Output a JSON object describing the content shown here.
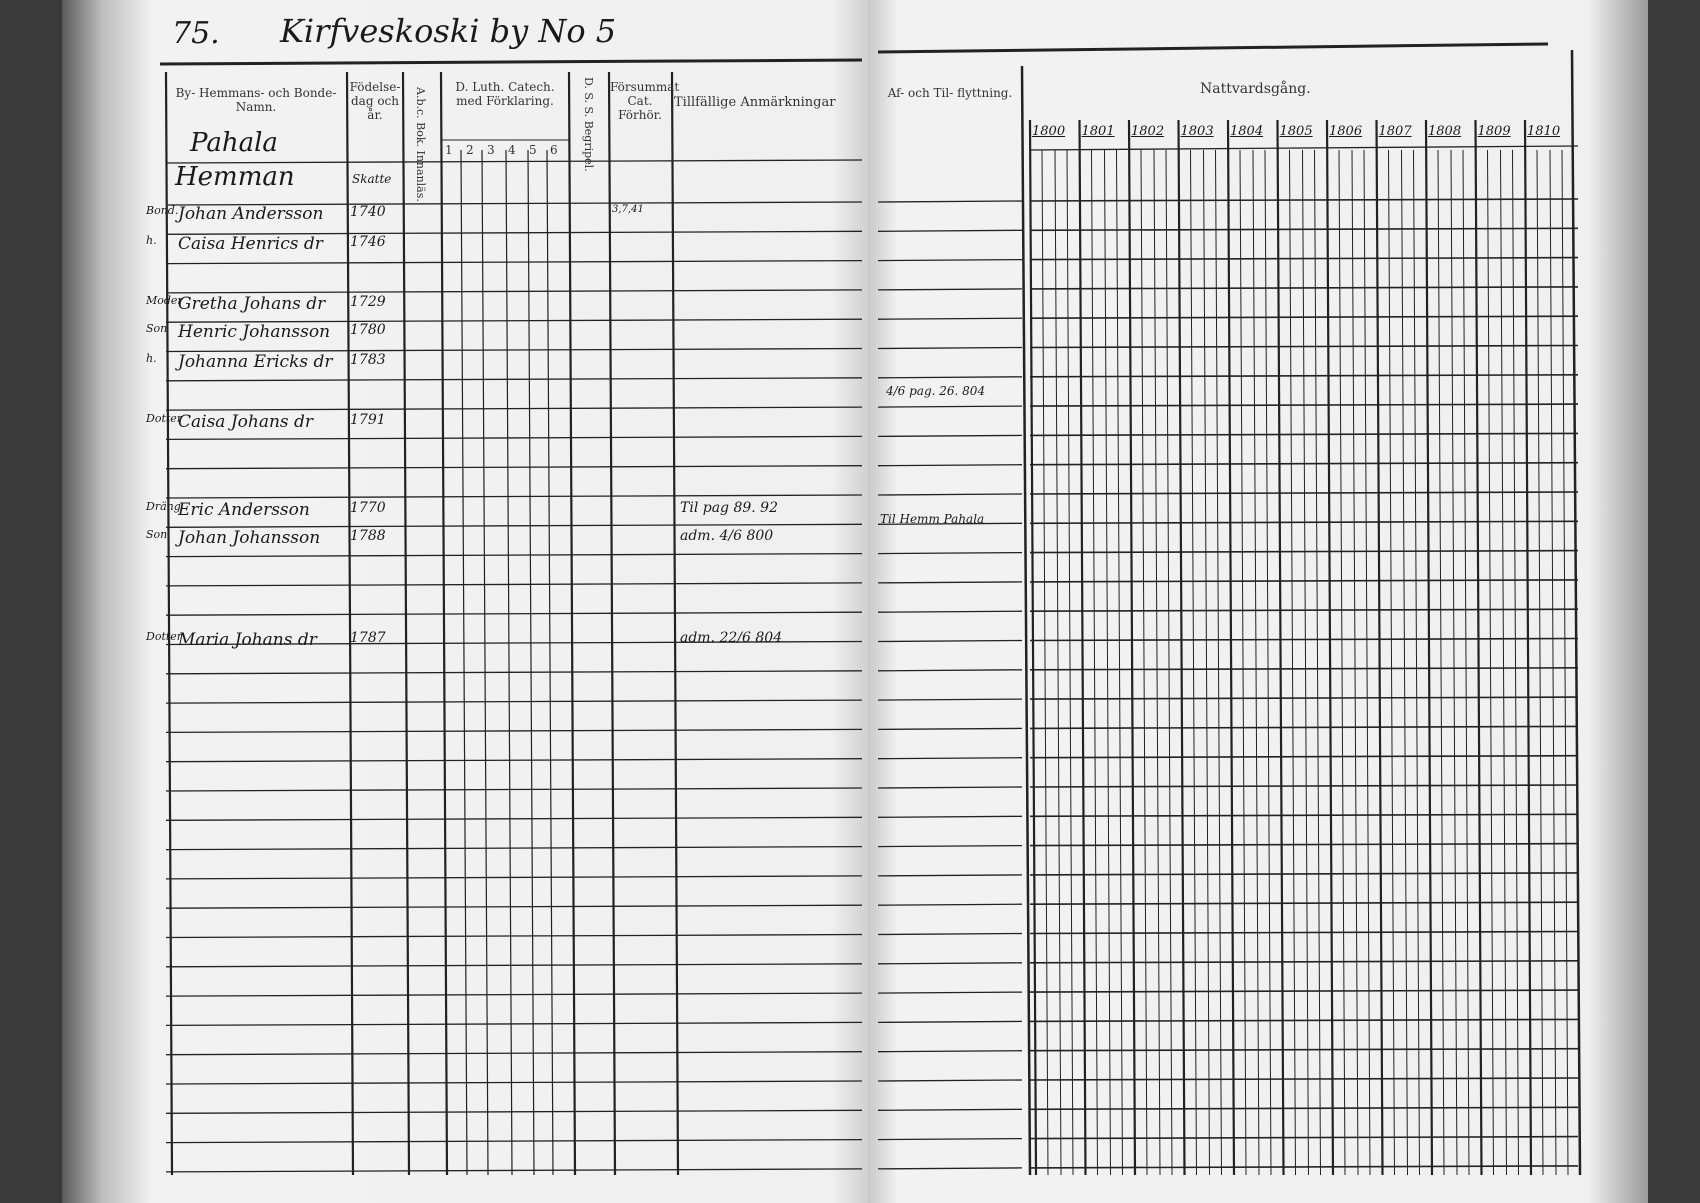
{
  "left_page": {
    "page_number": "75.",
    "title": "Kirfveskoski by No 5",
    "headers": {
      "name": "By- Hemmans- och Bonde-Namn.",
      "birth": "Födelse-dag och år.",
      "abc": "A.b.c. Bok. Innanläs.",
      "luther": "D. Luth. Catech. med Förklaring.",
      "luther_cols": [
        "1",
        "2",
        "3",
        "4",
        "5",
        "6"
      ],
      "dss": "D. S. S. Begripel.",
      "missed": "Försummat Cat. Förhör.",
      "remarks": "Tillfällige Anmärkningar"
    },
    "farm": [
      "Pahala",
      "Hemman"
    ],
    "birth_note": "Skatte",
    "entries": [
      {
        "role": "Bond.",
        "name": "Johan Andersson",
        "year": "1740",
        "note": "3,7,41"
      },
      {
        "role": "h.",
        "name": "Caisa Henrics dr",
        "year": "1746",
        "note": ""
      },
      {
        "role": "Moder",
        "name": "Gretha Johans dr",
        "year": "1729",
        "note": "",
        "remark": ""
      },
      {
        "role": "Son",
        "name": "Henric Johansson",
        "year": "1780",
        "note": ""
      },
      {
        "role": "h.",
        "name": "Johanna Ericks dr",
        "year": "1783",
        "note": ""
      },
      {
        "role": "Dotter",
        "name": "Caisa Johans dr",
        "year": "1791",
        "note": ""
      },
      {
        "role": "Dräng",
        "name": "Eric Andersson",
        "year": "1770",
        "note": "",
        "remark": "Til pag 89. 92"
      },
      {
        "role": "Son",
        "name": "Johan Johansson",
        "year": "1788",
        "note": "",
        "remark": "adm. 4/6 800"
      },
      {
        "role": "Dotter",
        "name": "Maria Johans dr",
        "year": "1787",
        "note": "",
        "remark": "adm. 22/6 804"
      }
    ]
  },
  "right_page": {
    "moving_header": "Af- och Til- flyttning.",
    "communion_header": "Nattvardsgång.",
    "years": [
      "1800",
      "1801",
      "1802",
      "1803",
      "1804",
      "1805",
      "1806",
      "1807",
      "1808",
      "1809",
      "1810"
    ],
    "moving_notes": [
      "4/6 pag. 26. 804",
      "Til Hemm Pahala"
    ]
  }
}
